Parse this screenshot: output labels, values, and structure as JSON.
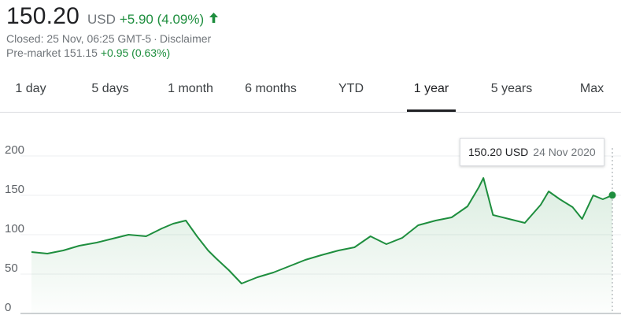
{
  "quote": {
    "price": "150.20",
    "currency": "USD",
    "change": "+5.90 (4.09%)",
    "direction": "up",
    "closed": "Closed: 25 Nov, 06:25 GMT-5",
    "disclaimer": "Disclaimer",
    "premarket_label": "Pre-market",
    "premarket_price": "151.15",
    "premarket_change": "+0.95 (0.63%)"
  },
  "tabs": [
    {
      "label": "1 day"
    },
    {
      "label": "5 days"
    },
    {
      "label": "1 month"
    },
    {
      "label": "6 months"
    },
    {
      "label": "YTD"
    },
    {
      "label": "1 year",
      "active": true
    },
    {
      "label": "5 years"
    },
    {
      "label": "Max"
    }
  ],
  "tooltip": {
    "price": "150.20 USD",
    "date": "24 Nov 2020"
  },
  "colors": {
    "line": "#1e8e3e",
    "fill": "#e6f4ea",
    "grid": "#eceff1",
    "axis": "#5f6368"
  },
  "chart_data": {
    "type": "area",
    "yticks": [
      "0",
      "50",
      "100",
      "150",
      "200"
    ],
    "ylim": [
      0,
      210
    ],
    "grid": true,
    "x": [
      "2019-11-25",
      "2019-12-05",
      "2019-12-15",
      "2019-12-25",
      "2020-01-05",
      "2020-01-15",
      "2020-01-25",
      "2020-02-05",
      "2020-02-15",
      "2020-02-22",
      "2020-03-01",
      "2020-03-08",
      "2020-03-15",
      "2020-03-20",
      "2020-03-28",
      "2020-04-05",
      "2020-04-15",
      "2020-04-25",
      "2020-05-05",
      "2020-05-15",
      "2020-05-25",
      "2020-06-05",
      "2020-06-15",
      "2020-06-25",
      "2020-07-05",
      "2020-07-15",
      "2020-07-25",
      "2020-08-05",
      "2020-08-15",
      "2020-08-25",
      "2020-09-01",
      "2020-09-04",
      "2020-09-10",
      "2020-09-20",
      "2020-09-30",
      "2020-10-10",
      "2020-10-15",
      "2020-10-22",
      "2020-10-30",
      "2020-11-05",
      "2020-11-12",
      "2020-11-18",
      "2020-11-24"
    ],
    "series": [
      {
        "values": [
          78,
          76,
          80,
          86,
          90,
          95,
          100,
          98,
          108,
          114,
          118,
          98,
          80,
          70,
          55,
          38,
          46,
          52,
          60,
          68,
          74,
          80,
          84,
          98,
          88,
          96,
          112,
          118,
          122,
          136,
          160,
          172,
          125,
          120,
          115,
          138,
          155,
          145,
          135,
          120,
          150,
          145,
          150.2
        ]
      }
    ]
  }
}
